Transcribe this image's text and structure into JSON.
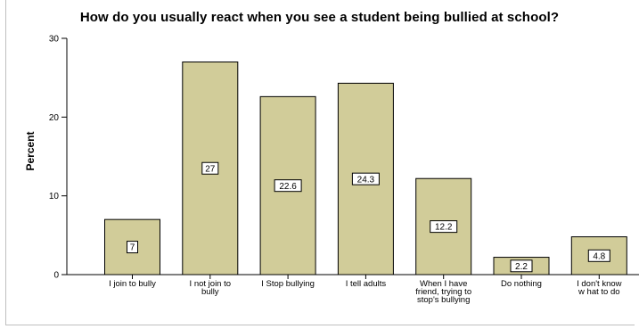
{
  "chart_data": {
    "type": "bar",
    "title": "How do you usually react when you see a student being bullied at school?",
    "ylabel": "Percent",
    "xlabel": "",
    "ylim": [
      0,
      30
    ],
    "yticks": [
      0,
      10,
      20,
      30
    ],
    "categories": [
      [
        "I join to bully"
      ],
      [
        "I  not join to",
        "bully"
      ],
      [
        "I Stop bullying"
      ],
      [
        "I tell adults"
      ],
      [
        "When I have",
        "friend, trying to",
        "stop's bullying"
      ],
      [
        "Do nothing"
      ],
      [
        "I don't know",
        "w hat to do"
      ]
    ],
    "values": [
      7,
      27,
      22.6,
      24.3,
      12.2,
      2.2,
      4.8
    ],
    "value_labels": [
      "7",
      "27",
      "22.6",
      "24.3",
      "12.2",
      "2.2",
      "4.8"
    ],
    "grid": false,
    "colors": {
      "bar_fill": "#d1cc99",
      "bar_stroke": "#000000",
      "axis": "#000000",
      "frame": "#bfbfbf"
    }
  }
}
